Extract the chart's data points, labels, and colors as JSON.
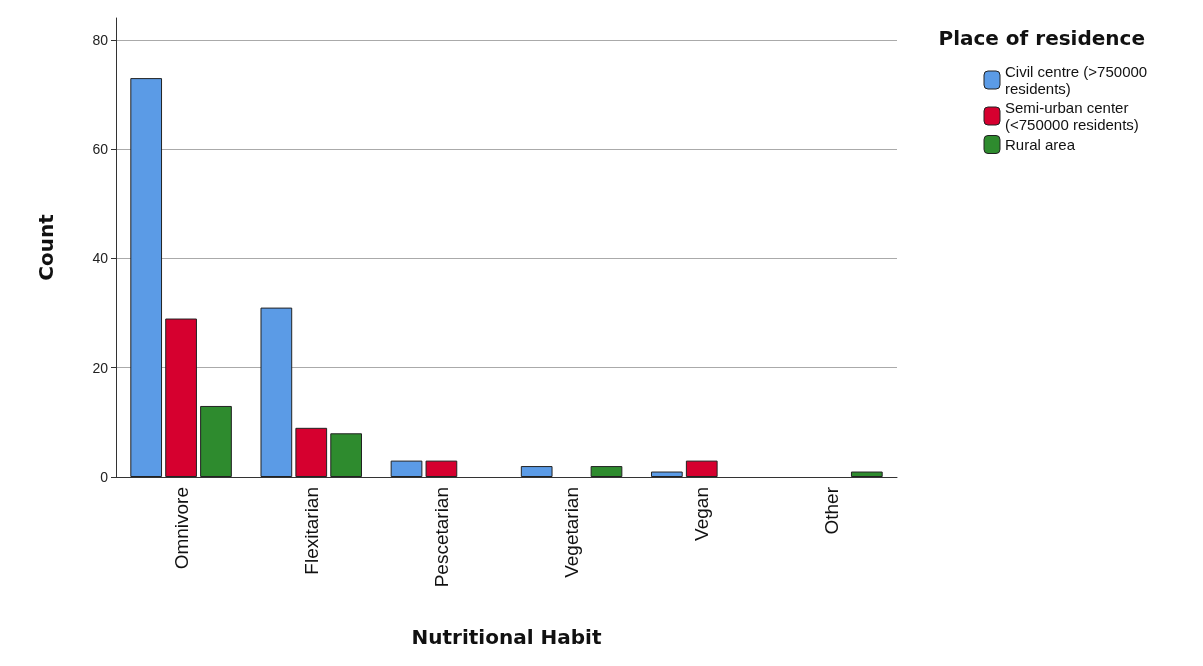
{
  "chart_data": {
    "type": "bar",
    "xlabel": "Nutritional Habit",
    "ylabel": "Count",
    "legend_title": "Place of residence",
    "categories": [
      "Omnivore",
      "Flexitarian",
      "Pescetarian",
      "Vegetarian",
      "Vegan",
      "Other"
    ],
    "series": [
      {
        "name": "Civil centre (>750000 residents)",
        "color": "#5b9be6",
        "values": [
          73,
          31,
          3,
          2,
          1,
          null
        ]
      },
      {
        "name": "Semi-urban center (<750000 residents)",
        "color": "#d6002f",
        "values": [
          29,
          9,
          3,
          null,
          3,
          null
        ]
      },
      {
        "name": "Rural area",
        "color": "#2e8b2e",
        "values": [
          13,
          8,
          null,
          2,
          null,
          1
        ]
      }
    ],
    "ylim": [
      0,
      84
    ],
    "yticks": [
      0,
      20,
      40,
      60,
      80
    ],
    "grid": "y",
    "legend": "top right"
  }
}
